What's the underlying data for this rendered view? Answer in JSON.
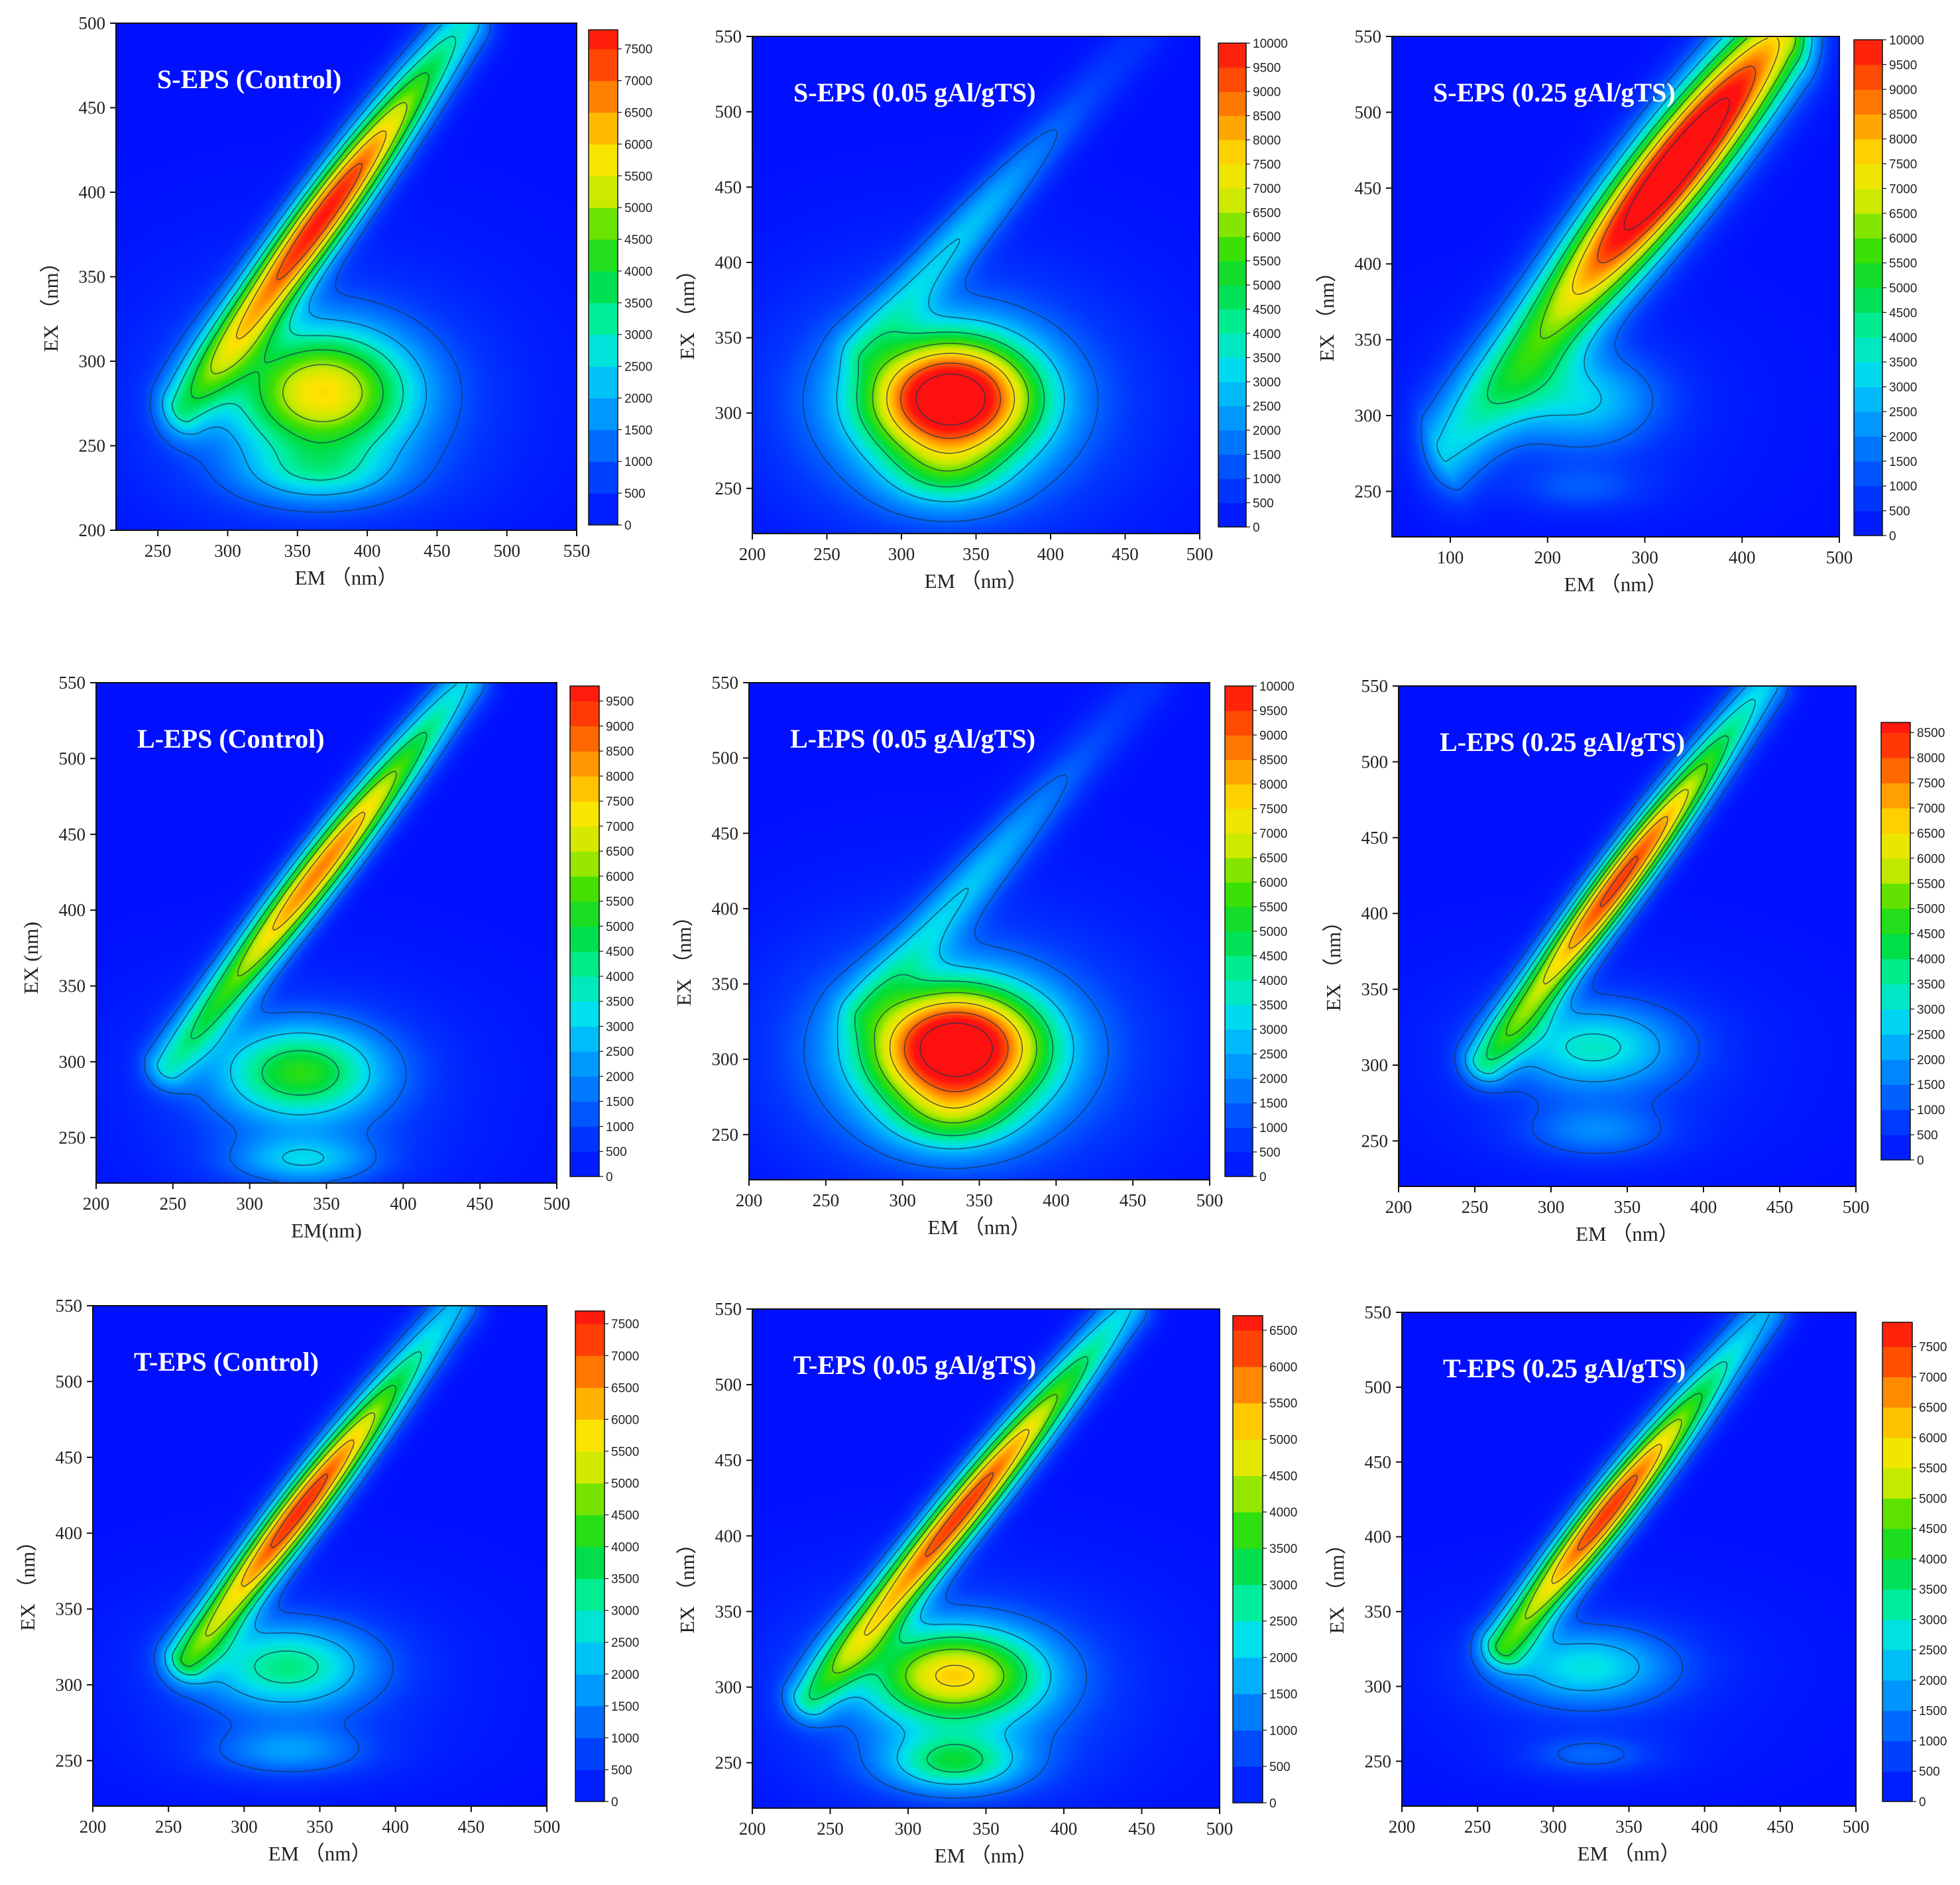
{
  "figure": {
    "palette": [
      "#0010ff",
      "#0038ff",
      "#0070ff",
      "#00a8ff",
      "#00e0ee",
      "#00ee9a",
      "#00dc3c",
      "#40e000",
      "#c8ea00",
      "#ffe400",
      "#ffa000",
      "#ff5000",
      "#ff1010"
    ],
    "background_color": "#0010ff",
    "contour_color": "#1d3450"
  },
  "chart_data": [
    {
      "type": "heatmap",
      "title": "S-EPS (Control)",
      "xlabel": "EM （nm）",
      "ylabel": "EX （nm）",
      "xlim": [
        220,
        550
      ],
      "ylim": [
        200,
        500
      ],
      "xticks": [
        250,
        300,
        350,
        400,
        450,
        500,
        550
      ],
      "yticks": [
        200,
        250,
        300,
        350,
        400,
        450,
        500
      ],
      "colorbar": {
        "max": 7800,
        "ticks": [
          0,
          500,
          1000,
          1500,
          2000,
          2500,
          3000,
          3500,
          4000,
          4500,
          5000,
          5500,
          6000,
          6500,
          7000,
          7500
        ]
      },
      "ridge": {
        "em_start": 265,
        "ex_start": 270,
        "em_end": 470,
        "ex_end": 500,
        "peak": 7600,
        "peak_em": 380,
        "peak_ex": 380,
        "width": 13
      },
      "peaks": [
        {
          "em": 368,
          "ex": 282,
          "value": 4900,
          "sx": 45,
          "sy": 26
        },
        {
          "em": 365,
          "ex": 233,
          "value": 1500,
          "sx": 38,
          "sy": 12
        }
      ]
    },
    {
      "type": "heatmap",
      "title": "S-EPS (0.05 gAl/gTS)",
      "xlabel": "EM （nm）",
      "ylabel": "EX （nm）",
      "xlim": [
        200,
        500
      ],
      "ylim": [
        220,
        550
      ],
      "xticks": [
        200,
        250,
        300,
        350,
        400,
        450,
        500
      ],
      "yticks": [
        250,
        300,
        350,
        400,
        450,
        500,
        550
      ],
      "colorbar": {
        "max": 10000,
        "ticks": [
          0,
          500,
          1000,
          1500,
          2000,
          2500,
          3000,
          3500,
          4000,
          4500,
          5000,
          5500,
          6000,
          6500,
          7000,
          7500,
          8000,
          8500,
          9000,
          9500,
          10000
        ]
      },
      "ridge": {
        "em_start": 270,
        "ex_start": 340,
        "em_end": 460,
        "ex_end": 550,
        "peak": 2600,
        "peak_em": 340,
        "peak_ex": 420,
        "width": 12
      },
      "peaks": [
        {
          "em": 333,
          "ex": 310,
          "value": 10000,
          "sx": 40,
          "sy": 28
        },
        {
          "em": 330,
          "ex": 258,
          "value": 2000,
          "sx": 28,
          "sy": 16
        }
      ]
    },
    {
      "type": "heatmap",
      "title": "S-EPS (0.25 gAl/gTS)",
      "xlabel": "EM （nm）",
      "ylabel": "EX （nm）",
      "xlim": [
        40,
        500
      ],
      "ylim": [
        220,
        550
      ],
      "xticks": [
        100,
        200,
        300,
        400,
        500
      ],
      "yticks": [
        250,
        300,
        350,
        400,
        450,
        500,
        550
      ],
      "colorbar": {
        "max": 10000,
        "ticks": [
          0,
          500,
          1000,
          1500,
          2000,
          2500,
          3000,
          3500,
          4000,
          4500,
          5000,
          5500,
          6000,
          6500,
          7000,
          7500,
          8000,
          8500,
          9000,
          9500,
          10000
        ]
      },
      "ridge": {
        "em_start": 90,
        "ex_start": 275,
        "em_end": 440,
        "ex_end": 550,
        "peak": 12000,
        "peak_em": 330,
        "peak_ex": 470,
        "width": 24
      },
      "peaks": [
        {
          "em": 235,
          "ex": 310,
          "value": 2600,
          "sx": 55,
          "sy": 22
        },
        {
          "em": 235,
          "ex": 252,
          "value": 900,
          "sx": 45,
          "sy": 10
        }
      ]
    },
    {
      "type": "heatmap",
      "title": "L-EPS (Control)",
      "xlabel": "EM(nm)",
      "ylabel": "EX (nm)",
      "xlim": [
        200,
        500
      ],
      "ylim": [
        220,
        550
      ],
      "xticks": [
        200,
        250,
        300,
        350,
        400,
        450,
        500
      ],
      "yticks": [
        250,
        300,
        350,
        400,
        450,
        500,
        550
      ],
      "colorbar": {
        "max": 9800,
        "ticks": [
          0,
          500,
          1000,
          1500,
          2000,
          2500,
          3000,
          3500,
          4000,
          4500,
          5000,
          5500,
          6000,
          6500,
          7000,
          7500,
          8000,
          8500,
          9000,
          9500
        ]
      },
      "ridge": {
        "em_start": 245,
        "ex_start": 295,
        "em_end": 440,
        "ex_end": 550,
        "peak": 8500,
        "peak_em": 355,
        "peak_ex": 420,
        "width": 11
      },
      "peaks": [
        {
          "em": 333,
          "ex": 293,
          "value": 4500,
          "sx": 38,
          "sy": 22
        },
        {
          "em": 335,
          "ex": 235,
          "value": 2200,
          "sx": 32,
          "sy": 11
        }
      ]
    },
    {
      "type": "heatmap",
      "title": "L-EPS (0.05 gAl/gTS)",
      "xlabel": "EM （nm）",
      "ylabel": "EX （nm）",
      "xlim": [
        200,
        500
      ],
      "ylim": [
        220,
        550
      ],
      "xticks": [
        200,
        250,
        300,
        350,
        400,
        450,
        500
      ],
      "yticks": [
        250,
        300,
        350,
        400,
        450,
        500,
        550
      ],
      "colorbar": {
        "max": 10000,
        "ticks": [
          0,
          500,
          1000,
          1500,
          2000,
          2500,
          3000,
          3500,
          4000,
          4500,
          5000,
          5500,
          6000,
          6500,
          7000,
          7500,
          8000,
          8500,
          9000,
          9500,
          10000
        ]
      },
      "ridge": {
        "em_start": 270,
        "ex_start": 330,
        "em_end": 460,
        "ex_end": 550,
        "peak": 2600,
        "peak_em": 340,
        "peak_ex": 420,
        "width": 12
      },
      "peaks": [
        {
          "em": 335,
          "ex": 308,
          "value": 10000,
          "sx": 40,
          "sy": 28
        },
        {
          "em": 332,
          "ex": 260,
          "value": 2200,
          "sx": 28,
          "sy": 16
        }
      ]
    },
    {
      "type": "heatmap",
      "title": "L-EPS (0.25 gAl/gTS)",
      "xlabel": "EM （nm）",
      "ylabel": "EX （nm）",
      "xlim": [
        200,
        500
      ],
      "ylim": [
        220,
        550
      ],
      "xticks": [
        200,
        250,
        300,
        350,
        400,
        450,
        500
      ],
      "yticks": [
        250,
        300,
        350,
        400,
        450,
        500,
        550
      ],
      "colorbar": {
        "max": 8700,
        "ticks": [
          0,
          500,
          1000,
          1500,
          2000,
          2500,
          3000,
          3500,
          4000,
          4500,
          5000,
          5500,
          6000,
          6500,
          7000,
          7500,
          8000,
          8500
        ]
      },
      "ridge": {
        "em_start": 255,
        "ex_start": 300,
        "em_end": 440,
        "ex_end": 550,
        "peak": 8200,
        "peak_em": 355,
        "peak_ex": 415,
        "width": 11
      },
      "peaks": [
        {
          "em": 328,
          "ex": 312,
          "value": 2700,
          "sx": 40,
          "sy": 20
        },
        {
          "em": 330,
          "ex": 256,
          "value": 1300,
          "sx": 32,
          "sy": 12
        }
      ]
    },
    {
      "type": "heatmap",
      "title": "T-EPS (Control)",
      "xlabel": "EM （nm）",
      "ylabel": "EX （nm）",
      "xlim": [
        200,
        500
      ],
      "ylim": [
        220,
        550
      ],
      "xticks": [
        200,
        250,
        300,
        350,
        400,
        450,
        500
      ],
      "yticks": [
        250,
        300,
        350,
        400,
        450,
        500,
        550
      ],
      "colorbar": {
        "max": 7700,
        "ticks": [
          0,
          500,
          1000,
          1500,
          2000,
          2500,
          3000,
          3500,
          4000,
          4500,
          5000,
          5500,
          6000,
          6500,
          7000,
          7500
        ]
      },
      "ridge": {
        "em_start": 260,
        "ex_start": 315,
        "em_end": 440,
        "ex_end": 550,
        "peak": 7400,
        "peak_em": 345,
        "peak_ex": 410,
        "width": 11
      },
      "peaks": [
        {
          "em": 328,
          "ex": 312,
          "value": 2800,
          "sx": 40,
          "sy": 20
        },
        {
          "em": 330,
          "ex": 256,
          "value": 1300,
          "sx": 35,
          "sy": 11
        }
      ]
    },
    {
      "type": "heatmap",
      "title": "T-EPS (0.05 gAl/gTS)",
      "xlabel": "EM （nm）",
      "ylabel": "EX （nm）",
      "xlim": [
        200,
        500
      ],
      "ylim": [
        220,
        550
      ],
      "xticks": [
        200,
        250,
        300,
        350,
        400,
        450,
        500
      ],
      "yticks": [
        250,
        300,
        350,
        400,
        450,
        500,
        550
      ],
      "colorbar": {
        "max": 6700,
        "ticks": [
          0,
          500,
          1000,
          1500,
          2000,
          2500,
          3000,
          3500,
          4000,
          4500,
          5000,
          5500,
          6000,
          6500
        ]
      },
      "ridge": {
        "em_start": 235,
        "ex_start": 290,
        "em_end": 440,
        "ex_end": 550,
        "peak": 6300,
        "peak_em": 345,
        "peak_ex": 410,
        "width": 11
      },
      "peaks": [
        {
          "em": 330,
          "ex": 308,
          "value": 4300,
          "sx": 40,
          "sy": 22
        },
        {
          "em": 330,
          "ex": 250,
          "value": 2400,
          "sx": 30,
          "sy": 13
        }
      ]
    },
    {
      "type": "heatmap",
      "title": "T-EPS (0.25 gAl/gTS)",
      "xlabel": "EM （nm）",
      "ylabel": "EX （nm）",
      "xlim": [
        200,
        500
      ],
      "ylim": [
        220,
        550
      ],
      "xticks": [
        200,
        250,
        300,
        350,
        400,
        450,
        500
      ],
      "yticks": [
        250,
        300,
        350,
        400,
        450,
        500,
        550
      ],
      "colorbar": {
        "max": 7900,
        "ticks": [
          0,
          500,
          1000,
          1500,
          2000,
          2500,
          3000,
          3500,
          4000,
          4500,
          5000,
          5500,
          6000,
          6500,
          7000,
          7500
        ]
      },
      "ridge": {
        "em_start": 265,
        "ex_start": 325,
        "em_end": 440,
        "ex_end": 550,
        "peak": 7500,
        "peak_em": 345,
        "peak_ex": 410,
        "width": 11
      },
      "peaks": [
        {
          "em": 322,
          "ex": 313,
          "value": 2300,
          "sx": 40,
          "sy": 18
        },
        {
          "em": 325,
          "ex": 254,
          "value": 900,
          "sx": 30,
          "sy": 9
        }
      ]
    }
  ]
}
